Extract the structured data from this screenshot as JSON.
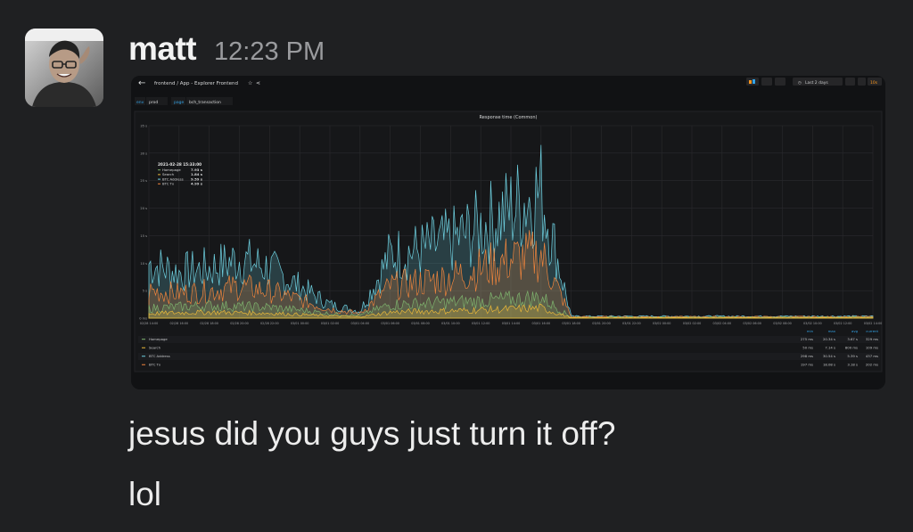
{
  "message": {
    "username": "matt",
    "time": "12:23 PM",
    "lines": [
      "jesus did you guys just turn it off?",
      "lol"
    ]
  },
  "dashboard": {
    "breadcrumb": "frontend / App - Explorer Frontend",
    "time_range": "Last 2 days",
    "refresh": "10s",
    "vars": [
      {
        "name": "env",
        "value": "prod"
      },
      {
        "name": "page",
        "value": "bch_transaction"
      }
    ],
    "panel_title": "Response time (Common)",
    "tooltip": {
      "time": "2021-02-28 15:33:00",
      "rows": [
        {
          "name": "Homepage",
          "value": "7.93 s"
        },
        {
          "name": "Search",
          "value": "1.84 s"
        },
        {
          "name": "BTC Address",
          "value": "9.59 s"
        },
        {
          "name": "BTC Tx",
          "value": "4.99 s"
        }
      ]
    },
    "legend_headers": [
      "min",
      "max",
      "avg",
      "current"
    ],
    "legend_rows": [
      {
        "name": "Homepage",
        "min": "275 ms",
        "max": "20.34 s",
        "avg": "3.67 s",
        "current": "329 ms"
      },
      {
        "name": "Search",
        "min": "50 ms",
        "max": "7.14 s",
        "avg": "800 ms",
        "current": "109 ms"
      },
      {
        "name": "BTC Address",
        "min": "298 ms",
        "max": "30.54 s",
        "avg": "5.39 s",
        "current": "437 ms"
      },
      {
        "name": "BTC Tx",
        "min": "197 ms",
        "max": "18.08 s",
        "avg": "3.18 s",
        "current": "202 ms"
      }
    ]
  },
  "chart_data": {
    "type": "area",
    "title": "Response time (Common)",
    "xlabel": "",
    "ylabel": "",
    "y_ticks": [
      "0 ms",
      "5 s",
      "10 s",
      "15 s",
      "20 s",
      "25 s",
      "30 s",
      "35 s"
    ],
    "ylim": [
      0,
      35
    ],
    "x_ticks": [
      "02/28 14:00",
      "02/28 16:00",
      "02/28 18:00",
      "02/28 20:00",
      "02/28 22:00",
      "03/01 00:00",
      "03/01 02:00",
      "03/01 04:00",
      "03/01 06:00",
      "03/01 08:00",
      "03/01 10:00",
      "03/01 12:00",
      "03/01 14:00",
      "03/01 16:00",
      "03/01 18:00",
      "03/01 20:00",
      "03/01 22:00",
      "03/02 00:00",
      "03/02 02:00",
      "03/02 04:00",
      "03/02 06:00",
      "03/02 08:00",
      "03/02 10:00",
      "03/02 12:00",
      "03/02 14:00"
    ],
    "series": [
      {
        "name": "Homepage",
        "color": "#7eb26d",
        "peaks": [
          [
            0,
            2.2
          ],
          [
            1,
            2.5
          ],
          [
            2,
            2.8
          ],
          [
            3,
            2.6
          ],
          [
            4,
            2.4
          ],
          [
            5,
            1.8
          ],
          [
            6,
            1.0
          ],
          [
            7,
            0.6
          ],
          [
            8,
            3.0
          ],
          [
            9,
            3.2
          ],
          [
            10,
            3.5
          ],
          [
            11,
            3.8
          ],
          [
            12,
            4.2
          ],
          [
            13,
            4.6
          ],
          [
            14,
            0.2
          ],
          [
            15,
            0.2
          ],
          [
            16,
            0.2
          ],
          [
            17,
            0.2
          ],
          [
            18,
            0.2
          ],
          [
            19,
            0.2
          ],
          [
            20,
            0.2
          ],
          [
            21,
            0.2
          ],
          [
            22,
            0.2
          ],
          [
            23,
            0.2
          ],
          [
            24,
            0.2
          ]
        ]
      },
      {
        "name": "Search",
        "color": "#eab839",
        "peaks": [
          [
            0,
            1.0
          ],
          [
            1,
            1.2
          ],
          [
            2,
            1.3
          ],
          [
            3,
            1.2
          ],
          [
            4,
            1.1
          ],
          [
            5,
            0.8
          ],
          [
            6,
            0.5
          ],
          [
            7,
            0.3
          ],
          [
            8,
            1.3
          ],
          [
            9,
            1.5
          ],
          [
            10,
            1.6
          ],
          [
            11,
            1.8
          ],
          [
            12,
            2.0
          ],
          [
            13,
            2.2
          ],
          [
            14,
            0.1
          ],
          [
            15,
            0.1
          ],
          [
            16,
            0.1
          ],
          [
            17,
            0.1
          ],
          [
            18,
            0.1
          ],
          [
            19,
            0.1
          ],
          [
            20,
            0.1
          ],
          [
            21,
            0.1
          ],
          [
            22,
            0.1
          ],
          [
            23,
            0.1
          ],
          [
            24,
            0.1
          ]
        ]
      },
      {
        "name": "BTC Address",
        "color": "#6ed0e0",
        "peaks": [
          [
            0,
            12
          ],
          [
            1,
            10
          ],
          [
            2,
            11
          ],
          [
            3,
            13
          ],
          [
            4,
            11
          ],
          [
            5,
            7
          ],
          [
            6,
            3
          ],
          [
            7,
            1.5
          ],
          [
            8,
            14
          ],
          [
            9,
            15
          ],
          [
            10,
            17
          ],
          [
            11,
            20
          ],
          [
            12,
            24
          ],
          [
            13,
            28
          ],
          [
            14,
            0.4
          ],
          [
            15,
            0.4
          ],
          [
            16,
            0.4
          ],
          [
            17,
            0.4
          ],
          [
            18,
            0.4
          ],
          [
            19,
            0.4
          ],
          [
            20,
            0.4
          ],
          [
            21,
            0.4
          ],
          [
            22,
            0.4
          ],
          [
            23,
            0.4
          ],
          [
            24,
            0.4
          ]
        ]
      },
      {
        "name": "BTC Tx",
        "color": "#ef843c",
        "peaks": [
          [
            0,
            6
          ],
          [
            1,
            5.5
          ],
          [
            2,
            6
          ],
          [
            3,
            7
          ],
          [
            4,
            6
          ],
          [
            5,
            4
          ],
          [
            6,
            2
          ],
          [
            7,
            1
          ],
          [
            8,
            7
          ],
          [
            9,
            8
          ],
          [
            10,
            9
          ],
          [
            11,
            11
          ],
          [
            12,
            13
          ],
          [
            13,
            14
          ],
          [
            14,
            0.3
          ],
          [
            15,
            0.3
          ],
          [
            16,
            0.3
          ],
          [
            17,
            0.3
          ],
          [
            18,
            0.3
          ],
          [
            19,
            0.3
          ],
          [
            20,
            0.3
          ],
          [
            21,
            0.3
          ],
          [
            22,
            0.3
          ],
          [
            23,
            0.3
          ],
          [
            24,
            0.3
          ]
        ]
      }
    ],
    "grid": true,
    "legend_placement": "bottom"
  },
  "colors": {
    "homepage": "#7eb26d",
    "search": "#eab839",
    "btc_address": "#6ed0e0",
    "btc_tx": "#ef843c",
    "grafana_orange": "#f7941d",
    "grafana_blue": "#33a2e5"
  }
}
